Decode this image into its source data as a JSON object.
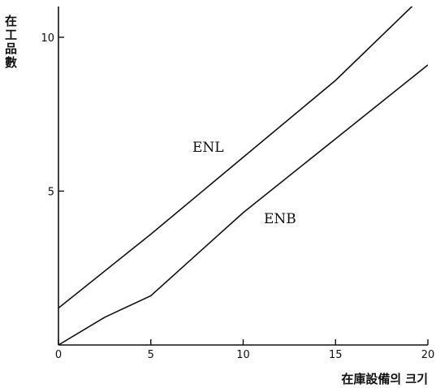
{
  "chart_data": {
    "type": "line",
    "xlabel": "在庫設備의 크기",
    "ylabel": [
      "在",
      "工",
      "品",
      "數"
    ],
    "xlim": [
      0,
      20
    ],
    "ylim": [
      0,
      11
    ],
    "x_ticks": [
      "0",
      "5",
      "10",
      "15",
      "20"
    ],
    "y_ticks": [
      "5",
      "10"
    ],
    "grid": false,
    "series": [
      {
        "name": "ENL",
        "x": [
          0,
          5,
          10,
          15,
          20
        ],
        "y": [
          1.2,
          3.6,
          6.1,
          8.6,
          11.5
        ]
      },
      {
        "name": "ENB",
        "x": [
          0,
          2.5,
          5,
          7.5,
          10,
          15,
          20
        ],
        "y": [
          0,
          0.9,
          1.6,
          2.95,
          4.3,
          6.7,
          9.1
        ]
      }
    ],
    "colors": {
      "line": "#111111",
      "axis": "#111111"
    }
  }
}
